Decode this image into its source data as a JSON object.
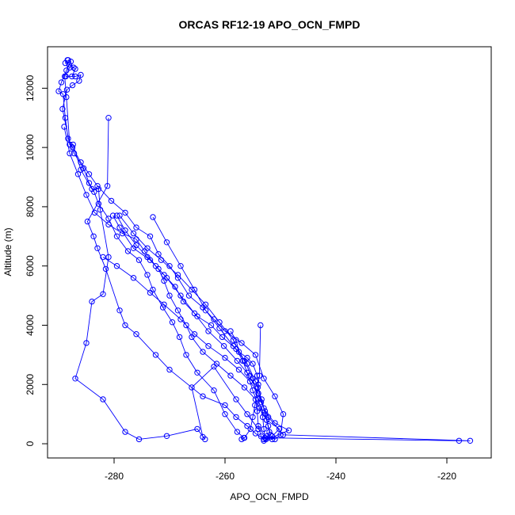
{
  "chart_data": {
    "type": "line",
    "title": "ORCAS RF12-19 APO_OCN_FMPD",
    "xlabel": "APO_OCN_FMPD",
    "ylabel": "Altitude (m)",
    "xlim": [
      -292,
      -212
    ],
    "ylim": [
      -480,
      13400
    ],
    "x_ticks": [
      -280,
      -260,
      -240,
      -220
    ],
    "x_tick_labels": [
      "-280",
      "-260",
      "-240",
      "-220"
    ],
    "y_ticks": [
      0,
      2000,
      4000,
      6000,
      8000,
      10000,
      12000
    ],
    "y_tick_labels": [
      "0",
      "2000",
      "4000",
      "6000",
      "8000",
      "10000",
      "12000"
    ],
    "grid": false,
    "legend": "none",
    "marker": "open-circle",
    "line_color": "#0000ff",
    "series": [
      {
        "points": [
          [
            -288.4,
            12950
          ],
          [
            -288.8,
            12850
          ],
          [
            -288.1,
            12800
          ],
          [
            -287.3,
            12700
          ],
          [
            -287.0,
            12650
          ],
          [
            -287.6,
            12400
          ],
          [
            -288.7,
            12400
          ],
          [
            -287.0,
            12400
          ],
          [
            -286.0,
            12450
          ],
          [
            -286.3,
            12250
          ],
          [
            -287.5,
            12100
          ],
          [
            -288.5,
            11950
          ],
          [
            -289.3,
            11300
          ],
          [
            -288.0,
            10100
          ],
          [
            -287.4,
            10100
          ],
          [
            -286.0,
            9250
          ],
          [
            -284.0,
            8600
          ],
          [
            -282.8,
            8600
          ],
          [
            -282.5,
            7900
          ],
          [
            -281.0,
            6300
          ],
          [
            -282.0,
            5050
          ],
          [
            -284.0,
            4800
          ],
          [
            -285.0,
            3400
          ],
          [
            -287.0,
            2200
          ],
          [
            -282.0,
            1500
          ],
          [
            -278.0,
            400
          ],
          [
            -275.5,
            150
          ],
          [
            -270.5,
            260
          ],
          [
            -265.0,
            500
          ],
          [
            -263.6,
            150
          ],
          [
            -264.0,
            230
          ],
          [
            -266.0,
            1900
          ],
          [
            -262.0,
            2600
          ],
          [
            -258.0,
            1500
          ],
          [
            -256.0,
            1000
          ],
          [
            -254.0,
            500
          ],
          [
            -252.5,
            250
          ],
          [
            -251.0,
            150
          ],
          [
            -250.0,
            300
          ],
          [
            -249.5,
            1000
          ],
          [
            -251.0,
            1600
          ],
          [
            -253.0,
            2200
          ],
          [
            -254.5,
            3000
          ],
          [
            -257.0,
            3400
          ],
          [
            -260.0,
            3800
          ],
          [
            -262.0,
            4200
          ],
          [
            -264.0,
            4600
          ],
          [
            -266.5,
            5000
          ],
          [
            -268.5,
            5600
          ],
          [
            -270.0,
            6000
          ],
          [
            -272.0,
            6400
          ],
          [
            -273.5,
            7000
          ],
          [
            -276.0,
            7300
          ],
          [
            -278.0,
            7800
          ],
          [
            -280.5,
            8200
          ],
          [
            -283.0,
            8700
          ],
          [
            -284.5,
            9100
          ],
          [
            -286.0,
            9500
          ],
          [
            -287.5,
            10000
          ],
          [
            -288.3,
            10300
          ],
          [
            -288.8,
            11000
          ],
          [
            -289.2,
            11800
          ],
          [
            -290.0,
            11900
          ],
          [
            -289.5,
            12200
          ],
          [
            -288.6,
            12600
          ],
          [
            -287.8,
            12900
          ],
          [
            -288.3,
            12950
          ]
        ]
      },
      {
        "points": [
          [
            -281.0,
            11000
          ],
          [
            -281.2,
            8700
          ],
          [
            -284.8,
            7500
          ],
          [
            -283.7,
            7000
          ],
          [
            -283.0,
            6600
          ],
          [
            -281.5,
            5900
          ],
          [
            -279.0,
            4500
          ],
          [
            -278.0,
            4000
          ],
          [
            -276.0,
            3700
          ],
          [
            -272.5,
            3000
          ],
          [
            -270.0,
            2500
          ],
          [
            -264.0,
            1600
          ],
          [
            -260.0,
            1300
          ],
          [
            -258.0,
            900
          ],
          [
            -256.0,
            600
          ],
          [
            -254.5,
            350
          ],
          [
            -253.0,
            150
          ],
          [
            -251.5,
            250
          ],
          [
            -250.2,
            500
          ],
          [
            -252.5,
            800
          ],
          [
            -253.8,
            1200
          ],
          [
            -255.0,
            1800
          ],
          [
            -256.0,
            2400
          ],
          [
            -256.8,
            2800
          ],
          [
            -258.0,
            3200
          ],
          [
            -260.5,
            3600
          ],
          [
            -262.5,
            4000
          ],
          [
            -265.0,
            4300
          ],
          [
            -267.5,
            4800
          ],
          [
            -269.0,
            5300
          ],
          [
            -271.0,
            5700
          ],
          [
            -272.5,
            6000
          ],
          [
            -274.5,
            6500
          ],
          [
            -276.0,
            6900
          ],
          [
            -278.5,
            7100
          ],
          [
            -281.0,
            7400
          ],
          [
            -283.5,
            7800
          ],
          [
            -285.0,
            8400
          ],
          [
            -286.5,
            9100
          ],
          [
            -288.0,
            9800
          ],
          [
            -289.0,
            10700
          ]
        ]
      },
      {
        "points": [
          [
            -282.0,
            6300
          ],
          [
            -279.5,
            6000
          ],
          [
            -276.5,
            5600
          ],
          [
            -273.5,
            5100
          ],
          [
            -271.0,
            4700
          ],
          [
            -268.0,
            4200
          ],
          [
            -265.5,
            3700
          ],
          [
            -263.0,
            3300
          ],
          [
            -260.0,
            2900
          ],
          [
            -257.5,
            2500
          ],
          [
            -255.5,
            2100
          ],
          [
            -254.0,
            1700
          ],
          [
            -253.0,
            1200
          ],
          [
            -252.5,
            800
          ],
          [
            -252.0,
            400
          ],
          [
            -252.6,
            150
          ],
          [
            -253.5,
            250
          ],
          [
            -254.0,
            600
          ],
          [
            -254.2,
            1100
          ],
          [
            -254.5,
            1500
          ],
          [
            -256.5,
            1900
          ],
          [
            -259.0,
            2300
          ],
          [
            -261.5,
            2700
          ],
          [
            -264.0,
            3100
          ],
          [
            -266.0,
            3600
          ],
          [
            -267.0,
            4000
          ],
          [
            -268.5,
            4500
          ],
          [
            -270.0,
            5000
          ],
          [
            -271.0,
            5500
          ],
          [
            -272.0,
            5900
          ],
          [
            -274.0,
            6300
          ],
          [
            -276.0,
            6700
          ],
          [
            -278.0,
            7200
          ],
          [
            -279.5,
            7700
          ]
        ]
      },
      {
        "points": [
          [
            -279.0,
            7700
          ],
          [
            -276.5,
            7100
          ],
          [
            -274.0,
            6600
          ],
          [
            -271.5,
            6200
          ],
          [
            -268.5,
            5700
          ],
          [
            -266.0,
            5200
          ],
          [
            -263.5,
            4700
          ],
          [
            -261.0,
            4100
          ],
          [
            -258.5,
            3500
          ],
          [
            -256.5,
            2800
          ],
          [
            -255.0,
            2200
          ],
          [
            -254.0,
            1500
          ],
          [
            -253.2,
            900
          ],
          [
            -253.0,
            500
          ],
          [
            -252.8,
            200
          ],
          [
            -217.8,
            100
          ],
          [
            -215.8,
            100
          ],
          [
            -249.5,
            300
          ],
          [
            -252.2,
            900
          ],
          [
            -253.5,
            1400
          ],
          [
            -254.0,
            2000
          ],
          [
            -254.2,
            2300
          ],
          [
            -255.0,
            2700
          ],
          [
            -256.0,
            2900
          ],
          [
            -257.5,
            3100
          ],
          [
            -258.0,
            3500
          ],
          [
            -259.0,
            3800
          ]
        ]
      },
      {
        "points": [
          [
            -253.6,
            4000
          ],
          [
            -253.8,
            2300
          ],
          [
            -254.1,
            1900
          ],
          [
            -254.6,
            1300
          ],
          [
            -255.0,
            900
          ],
          [
            -255.4,
            500
          ],
          [
            -256.5,
            200
          ],
          [
            -257.0,
            150
          ],
          [
            -256.6,
            200
          ],
          [
            -257.8,
            400
          ],
          [
            -260.0,
            1000
          ],
          [
            -262.0,
            1800
          ],
          [
            -265.0,
            2400
          ],
          [
            -267.0,
            3000
          ],
          [
            -268.2,
            3600
          ],
          [
            -269.5,
            4100
          ],
          [
            -271.2,
            4600
          ],
          [
            -273.0,
            5200
          ],
          [
            -274.0,
            5700
          ],
          [
            -275.5,
            6200
          ],
          [
            -277.5,
            6500
          ],
          [
            -279.5,
            7000
          ],
          [
            -281.0,
            7600
          ],
          [
            -282.8,
            8100
          ],
          [
            -283.6,
            8500
          ],
          [
            -284.5,
            8800
          ],
          [
            -285.5,
            9300
          ],
          [
            -287.2,
            9800
          ],
          [
            -288.0,
            10100
          ],
          [
            -288.6,
            11700
          ],
          [
            -288.9,
            12400
          ],
          [
            -288.0,
            12700
          ]
        ]
      },
      {
        "points": [
          [
            -273.0,
            7650
          ],
          [
            -270.5,
            6800
          ],
          [
            -268.0,
            6000
          ],
          [
            -265.5,
            5200
          ],
          [
            -263.5,
            4500
          ],
          [
            -261.0,
            3900
          ],
          [
            -258.5,
            3300
          ],
          [
            -256.0,
            2700
          ],
          [
            -254.5,
            2100
          ],
          [
            -253.4,
            1500
          ],
          [
            -252.7,
            1000
          ],
          [
            -252.2,
            600
          ],
          [
            -251.8,
            300
          ],
          [
            -251.5,
            150
          ],
          [
            -253.0,
            100
          ],
          [
            -248.5,
            450
          ],
          [
            -251.0,
            700
          ],
          [
            -252.8,
            1100
          ],
          [
            -254.0,
            1700
          ],
          [
            -255.6,
            2300
          ],
          [
            -257.8,
            2800
          ],
          [
            -260.2,
            3300
          ],
          [
            -263.0,
            3800
          ],
          [
            -265.5,
            4400
          ],
          [
            -268.0,
            5000
          ],
          [
            -270.5,
            5600
          ],
          [
            -273.5,
            6200
          ],
          [
            -276.5,
            6600
          ],
          [
            -279.0,
            7300
          ],
          [
            -280.2,
            7700
          ]
        ]
      }
    ]
  }
}
